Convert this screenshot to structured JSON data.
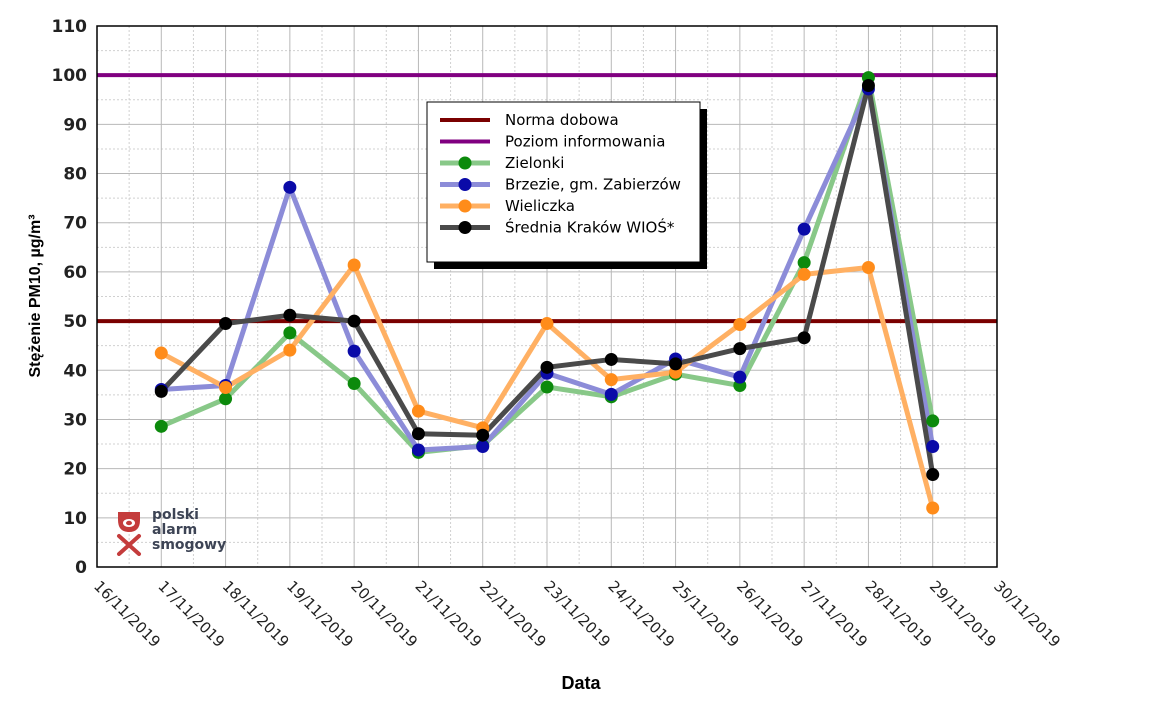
{
  "chart_data": {
    "type": "line",
    "xlabel": "Data",
    "ylabel": "Stężenie PM10, µg/m³",
    "ylim": [
      0,
      110
    ],
    "yticks": [
      0,
      10,
      20,
      30,
      40,
      50,
      60,
      70,
      80,
      90,
      100,
      110
    ],
    "grid": true,
    "legend_position": "top-center",
    "x_tick_labels": [
      "16/11/2019",
      "17/11/2019",
      "18/11/2019",
      "19/11/2019",
      "20/11/2019",
      "21/11/2019",
      "22/11/2019",
      "23/11/2019",
      "24/11/2019",
      "25/11/2019",
      "26/11/2019",
      "27/11/2019",
      "28/11/2019",
      "29/11/2019",
      "30/11/2019"
    ],
    "x_dates": [
      "17/11/2019",
      "18/11/2019",
      "19/11/2019",
      "20/11/2019",
      "21/11/2019",
      "22/11/2019",
      "23/11/2019",
      "24/11/2019",
      "25/11/2019",
      "26/11/2019",
      "27/11/2019",
      "28/11/2019",
      "29/11/2019"
    ],
    "reference_lines": [
      {
        "name": "Norma dobowa",
        "value": 50,
        "color": "#7a0000"
      },
      {
        "name": "Poziom informowania",
        "value": 100,
        "color": "#800080"
      }
    ],
    "series": [
      {
        "name": "Zielonki",
        "line_color": "#88c888",
        "marker_color": "#0c8a0c",
        "values": [
          28.6,
          34.2,
          47.6,
          37.3,
          23.3,
          24.7,
          36.6,
          34.6,
          39.2,
          36.9,
          61.9,
          99.5,
          29.7
        ]
      },
      {
        "name": "Brzezie, gm. Zabierzów",
        "line_color": "#8c8cd8",
        "marker_color": "#0a0aa8",
        "values": [
          36.1,
          36.9,
          77.2,
          43.9,
          23.8,
          24.5,
          39.4,
          35.1,
          42.3,
          38.6,
          68.7,
          97.2,
          24.5
        ]
      },
      {
        "name": "Wieliczka",
        "line_color": "#ffb063",
        "marker_color": "#ff8c1a",
        "values": [
          43.5,
          36.5,
          44.1,
          61.4,
          31.7,
          28.3,
          49.5,
          38.1,
          39.6,
          49.3,
          59.5,
          60.9,
          12.0
        ]
      },
      {
        "name": "Średnia Kraków WIOŚ*",
        "line_color": "#4a4a4a",
        "marker_color": "#000000",
        "values": [
          35.7,
          49.5,
          51.2,
          50.0,
          27.1,
          26.8,
          40.6,
          42.2,
          41.3,
          44.4,
          46.6,
          97.9,
          18.8
        ]
      }
    ]
  },
  "logo": {
    "line1": "polski",
    "line2": "alarm",
    "line3": "smogowy"
  }
}
